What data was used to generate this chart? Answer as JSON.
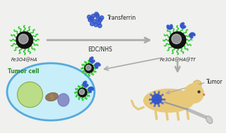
{
  "background_color": "#f0f0ee",
  "arrow_color": "#aaaaaa",
  "label_fe3o4_ha": "Fe3O4@HA",
  "label_fe3o4_ha_tf": "Fe3O4@HA@Tf",
  "label_transferrin": "Transferrin",
  "label_edcnhs": "EDC/NHS",
  "label_tumor_cell": "Tumor cell",
  "label_tumor": "Tumor",
  "nanoparticle_core_color": "#111111",
  "nanoparticle_inner_color": "#cccccc",
  "ha_spike_color": "#33cc33",
  "transferrin_color": "#3355cc",
  "tumor_cell_fill": "#c8eefa",
  "tumor_cell_border": "#55aadd",
  "cell_large_ball_color": "#bbdd88",
  "cell_mito_color": "#886644",
  "cell_nucleus_color": "#7777bb",
  "mouse_color": "#e8c97a",
  "tumor_on_mouse_color": "#3355cc",
  "text_color": "#222222",
  "text_color_green": "#228822",
  "tf_offsets_x": [
    0.0,
    0.165,
    -0.132,
    0.066,
    0.198,
    -0.11,
    0.264,
    -0.198,
    0.132,
    0.33,
    -0.055,
    0.242,
    -0.242,
    0.088
  ],
  "tf_offsets_y": [
    0.0,
    0.11,
    0.132,
    -0.154,
    -0.066,
    -0.11,
    0.066,
    0.066,
    0.264,
    0.165,
    0.242,
    -0.198,
    0.198,
    0.33
  ]
}
